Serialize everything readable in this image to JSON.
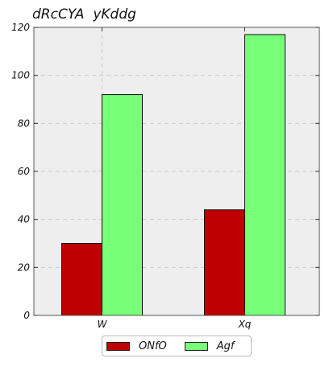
{
  "chart_data": {
    "type": "bar",
    "title": "dRcCYA  yKddg",
    "xlabel": "",
    "ylabel": "",
    "categories": [
      "W",
      "Xq"
    ],
    "series": [
      {
        "name": "ONfO",
        "values": [
          30,
          44
        ],
        "color": "#bf0000"
      },
      {
        "name": "Agf",
        "values": [
          92,
          117
        ],
        "color": "#77ff77"
      }
    ],
    "ylim": [
      0,
      120
    ],
    "yticks": [
      0,
      20,
      40,
      60,
      80,
      100,
      120
    ],
    "grid": true,
    "legend_position": "bottom-center",
    "background": "#eeeeee"
  }
}
